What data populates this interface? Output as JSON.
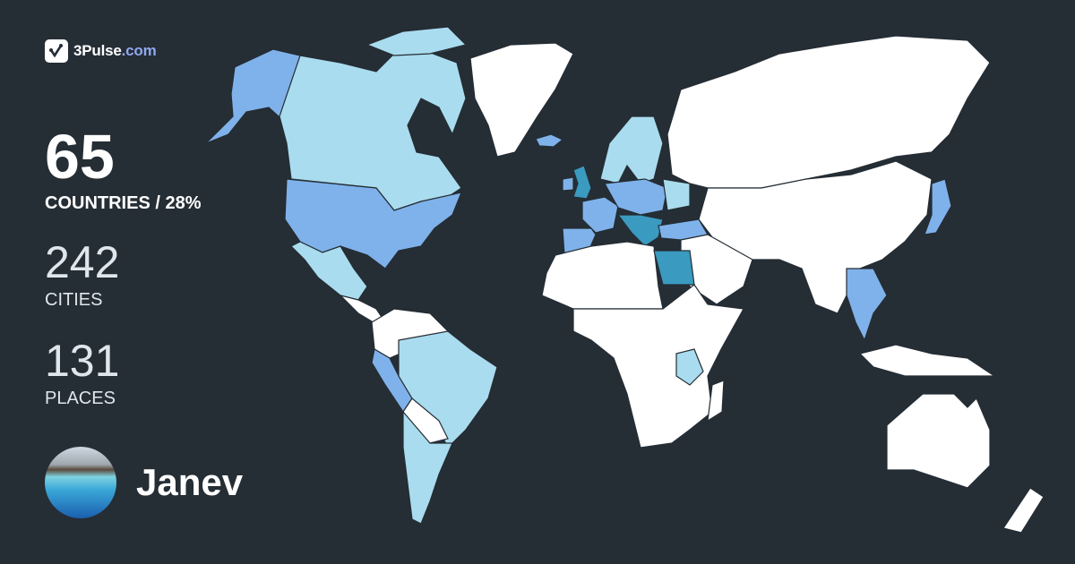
{
  "brand": {
    "name": "3Pulse",
    "domain": ".com",
    "icon": "pulse-check-icon"
  },
  "stats": {
    "countries": {
      "value": "65",
      "label": "COUNTRIES / 28%"
    },
    "cities": {
      "value": "242",
      "label": "CITIES"
    },
    "places": {
      "value": "131",
      "label": "PLACES"
    }
  },
  "user": {
    "name": "Janev"
  },
  "colors": {
    "background": "#252d35",
    "unvisited": "#ffffff",
    "visited_light": "#a9dcee",
    "visited_medium": "#7fb2ea",
    "visited_dark": "#3a9ac0",
    "brand_accent": "#8fa8f0"
  }
}
